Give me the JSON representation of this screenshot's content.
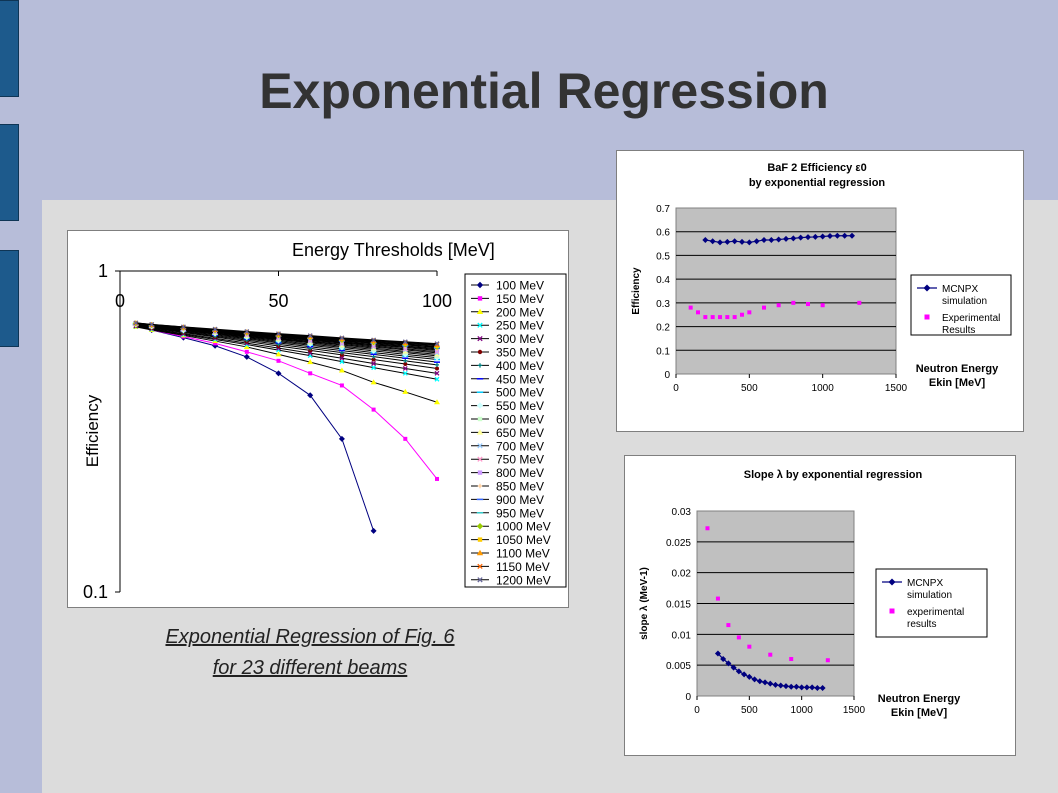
{
  "title": "Exponential Regression",
  "caption": {
    "line1": "Exponential Regression of Fig. 6",
    "line2": "for 23 different beams"
  },
  "colors": {
    "band": "#b7bdd9",
    "background": "#dcdcdc",
    "tab": "#1d5a8c",
    "plot_area": "#c0c0c0",
    "mcnpx": "#000080",
    "experimental": "#ff00ff"
  },
  "chart_data": [
    {
      "type": "line",
      "title": "Energy Thresholds [MeV]",
      "xlabel": "",
      "ylabel": "Efficiency",
      "xlim": [
        0,
        100
      ],
      "ylim": [
        0.1,
        1
      ],
      "yscale": "log",
      "x_ticks": [
        "0",
        "50",
        "100"
      ],
      "y_ticks": [
        "1",
        "0.1"
      ],
      "x_axis_position": "top",
      "legend": "right",
      "x": [
        5,
        10,
        20,
        30,
        40,
        50,
        60,
        70,
        80,
        90,
        100
      ],
      "series": [
        {
          "name": "100 MeV",
          "color": "#000080",
          "marker": "diamond",
          "values": [
            0.68,
            0.655,
            0.62,
            0.585,
            0.54,
            0.48,
            0.41,
            0.3,
            0.155,
            null,
            null
          ]
        },
        {
          "name": "150 MeV",
          "color": "#ff00ff",
          "marker": "square",
          "values": [
            0.675,
            0.655,
            0.625,
            0.595,
            0.56,
            0.525,
            0.48,
            0.44,
            0.37,
            0.3,
            0.225
          ]
        },
        {
          "name": "200 MeV",
          "color": "#ffff00",
          "marker": "triangle",
          "values": [
            0.67,
            0.655,
            0.63,
            0.605,
            0.58,
            0.55,
            0.52,
            0.49,
            0.45,
            0.42,
            0.39
          ]
        },
        {
          "name": "250 MeV",
          "color": "#00ffff",
          "marker": "x",
          "values": [
            0.672,
            0.658,
            0.634,
            0.612,
            0.59,
            0.567,
            0.545,
            0.522,
            0.5,
            0.48,
            0.46
          ]
        },
        {
          "name": "300 MeV",
          "color": "#800080",
          "marker": "x",
          "values": [
            0.674,
            0.661,
            0.638,
            0.617,
            0.596,
            0.575,
            0.555,
            0.535,
            0.515,
            0.497,
            0.48
          ]
        },
        {
          "name": "350 MeV",
          "color": "#800000",
          "marker": "circle",
          "values": [
            0.676,
            0.664,
            0.643,
            0.623,
            0.603,
            0.584,
            0.566,
            0.548,
            0.53,
            0.513,
            0.497
          ]
        },
        {
          "name": "400 MeV",
          "color": "#008080",
          "marker": "plus",
          "values": [
            0.678,
            0.666,
            0.646,
            0.627,
            0.609,
            0.591,
            0.574,
            0.557,
            0.541,
            0.525,
            0.51
          ]
        },
        {
          "name": "450 MeV",
          "color": "#0000ff",
          "marker": "dash",
          "values": [
            0.679,
            0.668,
            0.649,
            0.631,
            0.614,
            0.597,
            0.581,
            0.565,
            0.55,
            0.535,
            0.52
          ]
        },
        {
          "name": "500 MeV",
          "color": "#00ccff",
          "marker": "dash",
          "values": [
            0.68,
            0.67,
            0.652,
            0.635,
            0.618,
            0.602,
            0.587,
            0.572,
            0.557,
            0.543,
            0.53
          ]
        },
        {
          "name": "550 MeV",
          "color": "#ccffff",
          "marker": "diamond",
          "values": [
            0.681,
            0.671,
            0.654,
            0.638,
            0.622,
            0.607,
            0.592,
            0.578,
            0.564,
            0.55,
            0.537
          ]
        },
        {
          "name": "600 MeV",
          "color": "#ccffcc",
          "marker": "square",
          "values": [
            0.682,
            0.672,
            0.656,
            0.64,
            0.625,
            0.611,
            0.597,
            0.583,
            0.57,
            0.557,
            0.544
          ]
        },
        {
          "name": "650 MeV",
          "color": "#ffff99",
          "marker": "triangle",
          "values": [
            0.683,
            0.673,
            0.658,
            0.643,
            0.628,
            0.614,
            0.601,
            0.588,
            0.575,
            0.562,
            0.55
          ]
        },
        {
          "name": "700 MeV",
          "color": "#99ccff",
          "marker": "x",
          "values": [
            0.684,
            0.674,
            0.659,
            0.645,
            0.631,
            0.617,
            0.604,
            0.592,
            0.58,
            0.568,
            0.556
          ]
        },
        {
          "name": "750 MeV",
          "color": "#ff99cc",
          "marker": "x",
          "values": [
            0.684,
            0.675,
            0.661,
            0.647,
            0.633,
            0.62,
            0.608,
            0.596,
            0.584,
            0.572,
            0.561
          ]
        },
        {
          "name": "800 MeV",
          "color": "#cc99ff",
          "marker": "square",
          "values": [
            0.685,
            0.676,
            0.662,
            0.648,
            0.635,
            0.623,
            0.611,
            0.599,
            0.588,
            0.577,
            0.566
          ]
        },
        {
          "name": "850 MeV",
          "color": "#ffcc99",
          "marker": "plus",
          "values": [
            0.686,
            0.677,
            0.663,
            0.65,
            0.637,
            0.625,
            0.614,
            0.602,
            0.591,
            0.581,
            0.57
          ]
        },
        {
          "name": "900 MeV",
          "color": "#3366ff",
          "marker": "dash",
          "values": [
            0.686,
            0.678,
            0.664,
            0.651,
            0.639,
            0.627,
            0.616,
            0.605,
            0.595,
            0.584,
            0.574
          ]
        },
        {
          "name": "950 MeV",
          "color": "#33cccc",
          "marker": "dash",
          "values": [
            0.687,
            0.678,
            0.665,
            0.653,
            0.641,
            0.629,
            0.619,
            0.608,
            0.598,
            0.588,
            0.578
          ]
        },
        {
          "name": "1000 MeV",
          "color": "#99cc00",
          "marker": "diamond",
          "values": [
            0.687,
            0.679,
            0.666,
            0.654,
            0.642,
            0.631,
            0.621,
            0.61,
            0.6,
            0.591,
            0.581
          ]
        },
        {
          "name": "1050 MeV",
          "color": "#ffcc00",
          "marker": "square",
          "values": [
            0.688,
            0.68,
            0.667,
            0.655,
            0.644,
            0.633,
            0.623,
            0.613,
            0.603,
            0.594,
            0.585
          ]
        },
        {
          "name": "1100 MeV",
          "color": "#ff9900",
          "marker": "triangle",
          "values": [
            0.688,
            0.68,
            0.668,
            0.656,
            0.645,
            0.635,
            0.625,
            0.615,
            0.606,
            0.597,
            0.588
          ]
        },
        {
          "name": "1150 MeV",
          "color": "#ff6600",
          "marker": "x",
          "values": [
            0.689,
            0.681,
            0.669,
            0.657,
            0.646,
            0.636,
            0.627,
            0.617,
            0.608,
            0.599,
            0.591
          ]
        },
        {
          "name": "1200 MeV",
          "color": "#666699",
          "marker": "x",
          "values": [
            0.689,
            0.682,
            0.67,
            0.659,
            0.648,
            0.638,
            0.629,
            0.619,
            0.61,
            0.602,
            0.594
          ]
        }
      ]
    },
    {
      "type": "scatter",
      "title": "BaF 2 Efficiency ε0",
      "subtitle": "by exponential regression",
      "xlabel": "Neutron Energy Ekin [MeV]",
      "ylabel": "Efficiency",
      "xlim": [
        0,
        1500
      ],
      "ylim": [
        0,
        0.7
      ],
      "x_ticks": [
        "0",
        "500",
        "1000",
        "1500"
      ],
      "y_ticks": [
        "0",
        "0.1",
        "0.2",
        "0.3",
        "0.4",
        "0.5",
        "0.6",
        "0.7"
      ],
      "grid": true,
      "legend": "right",
      "series": [
        {
          "name": "MCNPX simulation",
          "color": "#000080",
          "marker": "diamond",
          "line": true,
          "x": [
            200,
            250,
            300,
            350,
            400,
            450,
            500,
            550,
            600,
            650,
            700,
            750,
            800,
            850,
            900,
            950,
            1000,
            1050,
            1100,
            1150,
            1200
          ],
          "y": [
            0.565,
            0.56,
            0.555,
            0.557,
            0.56,
            0.557,
            0.555,
            0.56,
            0.565,
            0.565,
            0.567,
            0.57,
            0.572,
            0.575,
            0.577,
            0.578,
            0.58,
            0.582,
            0.583,
            0.583,
            0.583
          ]
        },
        {
          "name": "Experimental Results",
          "color": "#ff00ff",
          "marker": "square",
          "line": false,
          "x": [
            100,
            150,
            200,
            250,
            300,
            350,
            400,
            450,
            500,
            600,
            700,
            800,
            900,
            1000,
            1250
          ],
          "y": [
            0.28,
            0.26,
            0.24,
            0.24,
            0.24,
            0.24,
            0.24,
            0.25,
            0.26,
            0.28,
            0.29,
            0.3,
            0.295,
            0.29,
            0.3
          ]
        }
      ]
    },
    {
      "type": "scatter",
      "title": "Slope λ by exponential regression",
      "xlabel": "Neutron Energy Ekin [MeV]",
      "ylabel": "slope λ (MeV-1)",
      "xlim": [
        0,
        1500
      ],
      "ylim": [
        0,
        0.03
      ],
      "x_ticks": [
        "0",
        "500",
        "1000",
        "1500"
      ],
      "y_ticks": [
        "0",
        "0.005",
        "0.01",
        "0.015",
        "0.02",
        "0.025",
        "0.03"
      ],
      "grid": true,
      "legend": "right",
      "series": [
        {
          "name": "MCNPX simulation",
          "color": "#000080",
          "marker": "diamond",
          "line": true,
          "x": [
            200,
            250,
            300,
            350,
            400,
            450,
            500,
            550,
            600,
            650,
            700,
            750,
            800,
            850,
            900,
            950,
            1000,
            1050,
            1100,
            1150,
            1200
          ],
          "y": [
            0.0069,
            0.006,
            0.0053,
            0.0046,
            0.004,
            0.0035,
            0.0031,
            0.0027,
            0.0024,
            0.0022,
            0.002,
            0.0018,
            0.0017,
            0.0016,
            0.0015,
            0.0015,
            0.0014,
            0.0014,
            0.0014,
            0.0013,
            0.0013
          ]
        },
        {
          "name": "experimental results",
          "color": "#ff00ff",
          "marker": "square",
          "line": false,
          "x": [
            100,
            200,
            300,
            400,
            500,
            700,
            900,
            1250
          ],
          "y": [
            0.0272,
            0.0158,
            0.0115,
            0.0095,
            0.008,
            0.0067,
            0.006,
            0.0058
          ]
        }
      ]
    }
  ]
}
